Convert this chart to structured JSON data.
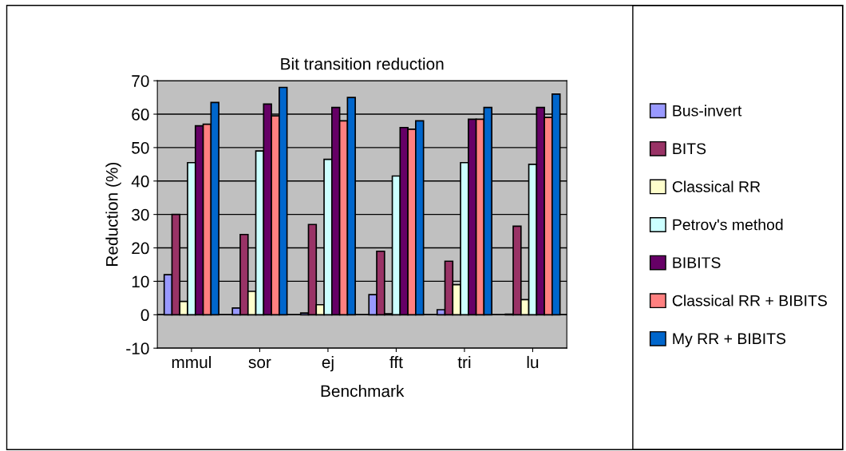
{
  "chart_data": {
    "type": "bar",
    "title": "Bit transition reduction",
    "xlabel": "Benchmark",
    "ylabel": "Reduction (%)",
    "categories": [
      "mmul",
      "sor",
      "ej",
      "fft",
      "tri",
      "lu"
    ],
    "series": [
      {
        "name": "Bus-invert",
        "color": "#9999ff",
        "values": [
          12,
          2,
          0.5,
          6,
          1.5,
          0.2
        ]
      },
      {
        "name": "BITS",
        "color": "#993366",
        "values": [
          30,
          24,
          27,
          19,
          16,
          26.5
        ]
      },
      {
        "name": "Classical RR",
        "color": "#ffffcc",
        "values": [
          4,
          7,
          3,
          0.3,
          9,
          4.5
        ]
      },
      {
        "name": "Petrov's method",
        "color": "#ccffff",
        "values": [
          45.5,
          49,
          46.5,
          41.5,
          45.5,
          45
        ]
      },
      {
        "name": "BIBITS",
        "color": "#660066",
        "values": [
          56.5,
          63,
          62,
          56,
          58.5,
          62
        ]
      },
      {
        "name": "Classical RR + BIBITS",
        "color": "#ff8080",
        "values": [
          57,
          59.5,
          58,
          55.5,
          58.5,
          59
        ]
      },
      {
        "name": "My RR + BIBITS",
        "color": "#0066cc",
        "values": [
          63.5,
          68,
          65,
          58,
          62,
          66
        ]
      }
    ],
    "ylim": [
      -10,
      70
    ],
    "yticks": [
      -10,
      0,
      10,
      20,
      30,
      40,
      50,
      60,
      70
    ],
    "grid": "y",
    "legend": "right"
  }
}
